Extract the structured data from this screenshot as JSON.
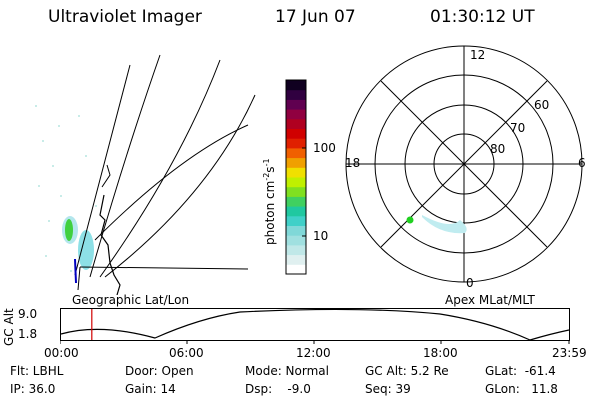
{
  "header": {
    "title": "Ultraviolet Imager",
    "date": "17 Jun 07",
    "time": "01:30:12 UT"
  },
  "colorbar": {
    "label_main": "photon cm",
    "label_exp1": "-2",
    "label_mid": "s",
    "label_exp2": "-1",
    "ticks": [
      "100",
      "10"
    ],
    "colors": [
      "#ffffff",
      "#e0f0f0",
      "#c0e8e8",
      "#a0e0e0",
      "#80d8d8",
      "#40d0c8",
      "#20c8a0",
      "#40d060",
      "#80e020",
      "#c0f000",
      "#f0e000",
      "#f0a000",
      "#f06000",
      "#e02000",
      "#d00000",
      "#b00020",
      "#900040",
      "#600050",
      "#300040",
      "#100020"
    ]
  },
  "left_panel": {
    "caption": "Geographic Lat/Lon"
  },
  "right_panel": {
    "caption": "Apex MLat/MLT",
    "mlt_labels": {
      "top": "12",
      "left": "18",
      "right": "6",
      "bottom": "0"
    },
    "lat_labels": [
      "60",
      "70",
      "80"
    ]
  },
  "altitude_plot": {
    "ylabel": "GC Alt",
    "yticks": [
      "9.0",
      "1.8"
    ],
    "xticks": [
      "00:00",
      "06:00",
      "12:00",
      "18:00",
      "23:59"
    ],
    "current_time_marker_hours": 1.5
  },
  "footer": {
    "flt": "Flt: LBHL",
    "ip": "IP: 36.0",
    "door": "Door: Open",
    "gain": "Gain: 14",
    "mode": "Mode: Normal",
    "dsp": "Dsp:    -9.0",
    "gc_alt": "GC Alt: 5.2 Re",
    "seq": "Seq: 39",
    "glat": "GLat:  -61.4",
    "glon": "GLon:   11.8"
  },
  "colors": {
    "accent_green": "#20d020",
    "marker_red": "#d00000",
    "auroral_cyan": "#a0e0e8"
  }
}
